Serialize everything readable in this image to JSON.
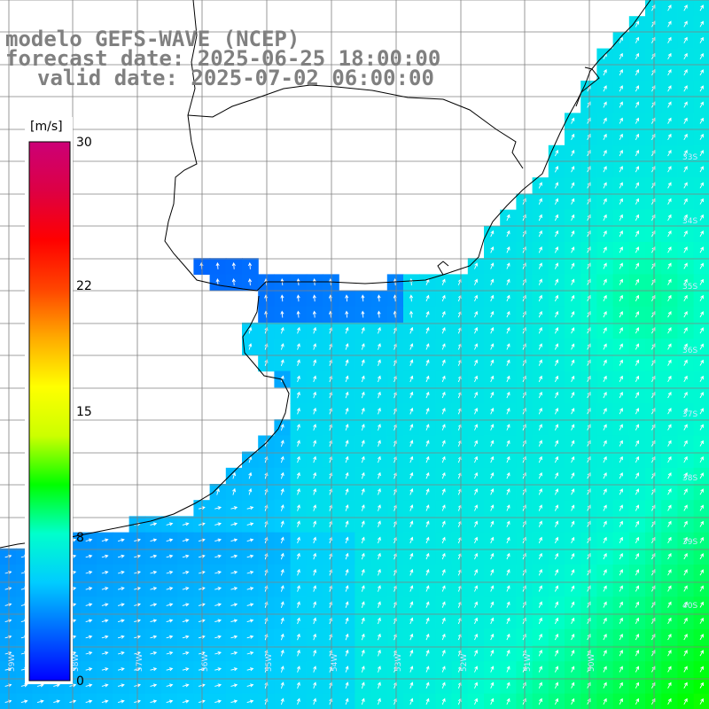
{
  "title": {
    "model": "modelo GEFS-WAVE (NCEP)",
    "forecast": "forecast date: 2025-06-25 18:00:00",
    "valid": "valid date: 2025-07-02 06:00:00"
  },
  "colorbar": {
    "unit": "[m/s]",
    "ticks": [
      {
        "value": 30,
        "label": "30"
      },
      {
        "value": 22,
        "label": "22"
      },
      {
        "value": 15,
        "label": "15"
      },
      {
        "value": 8,
        "label": "8"
      },
      {
        "value": 0,
        "label": "0"
      }
    ],
    "colors": [
      "#0000ff",
      "#0066ff",
      "#00ccff",
      "#00ffcc",
      "#00ff00",
      "#ccff00",
      "#ffff00",
      "#ffaa00",
      "#ff4400",
      "#ff0000",
      "#dd0044",
      "#cc0077"
    ]
  },
  "lat_labels": [
    "33S",
    "34S",
    "35S",
    "36S",
    "37S",
    "38S",
    "39S",
    "40S"
  ],
  "lon_labels": [
    "59W",
    "58W",
    "57W",
    "56W",
    "55W",
    "54W",
    "53W",
    "52W",
    "51W",
    "50W"
  ],
  "colors": {
    "land": "#ffffff",
    "grid": "#808080",
    "coast": "#000000",
    "arrow": "#ffffff",
    "title": "#808080"
  }
}
